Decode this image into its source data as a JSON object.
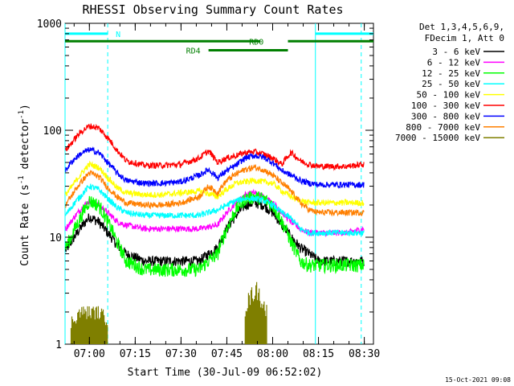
{
  "chart_data": {
    "type": "line",
    "title": "RHESSI Observing Summary Count Rates",
    "xlabel": "Start Time (30-Jul-09 06:52:02)",
    "ylabel_main": "Count Rate (s",
    "ylabel_sup1": "-1",
    "ylabel_mid": " detector",
    "ylabel_sup2": "-1",
    "ylabel_end": ")",
    "y_scale": "log",
    "ylim": [
      1,
      1000
    ],
    "xlim": [
      6.8672,
      8.55
    ],
    "x_ticks": [
      {
        "label": "07:00",
        "value": 7.0
      },
      {
        "label": "07:15",
        "value": 7.25
      },
      {
        "label": "07:30",
        "value": 7.5
      },
      {
        "label": "07:45",
        "value": 7.75
      },
      {
        "label": "08:00",
        "value": 8.0
      },
      {
        "label": "08:15",
        "value": 8.25
      },
      {
        "label": "08:30",
        "value": 8.5
      }
    ],
    "y_ticks": [
      {
        "label": "1",
        "value": 1
      },
      {
        "label": "10",
        "value": 10
      },
      {
        "label": "100",
        "value": 100
      },
      {
        "label": "1000",
        "value": 1000
      }
    ],
    "legend_header": [
      "Det 1,3,4,5,6,9,",
      "FDecim 1, Att 0"
    ],
    "legend_placement": "right",
    "timestamp": "15-Oct-2021 09:08",
    "flags": [
      {
        "label": "N",
        "color": "#00ffff",
        "spans": [
          [
            6.8672,
            7.1
          ],
          [
            8.2333,
            8.55
          ]
        ],
        "level": 800
      },
      {
        "label": "RD0",
        "color": "#007f00",
        "spans": [
          [
            6.8672,
            7.9333
          ],
          [
            8.0833,
            8.55
          ]
        ],
        "level": 680
      },
      {
        "label": "RD4",
        "color": "#007f00",
        "spans": [
          [
            7.65,
            8.0833
          ]
        ],
        "level": 560
      }
    ],
    "vlines": [
      {
        "x": 6.8672,
        "style": "solid"
      },
      {
        "x": 7.1,
        "style": "dashed"
      },
      {
        "x": 8.2333,
        "style": "solid"
      },
      {
        "x": 8.4833,
        "style": "dashed"
      }
    ],
    "series": [
      {
        "name": "3 - 6 keV",
        "color": "#000000",
        "x": [
          6.87,
          6.9,
          6.95,
          7.0,
          7.05,
          7.1,
          7.15,
          7.2,
          7.3,
          7.4,
          7.5,
          7.6,
          7.7,
          7.75,
          7.8,
          7.85,
          7.9,
          7.95,
          8.0,
          8.05,
          8.1,
          8.15,
          8.2,
          8.25,
          8.3,
          8.4,
          8.5
        ],
        "y": [
          7.5,
          9,
          12,
          15.5,
          14,
          11,
          8.5,
          7,
          6,
          6,
          6,
          6,
          8,
          12,
          16,
          20,
          21,
          20,
          17,
          13,
          10,
          8,
          7,
          6,
          6,
          6,
          6
        ]
      },
      {
        "name": "6 - 12 keV",
        "color": "#ff00ff",
        "x": [
          6.87,
          6.9,
          6.95,
          7.0,
          7.05,
          7.1,
          7.15,
          7.2,
          7.3,
          7.4,
          7.5,
          7.6,
          7.7,
          7.75,
          7.8,
          7.85,
          7.9,
          7.95,
          8.0,
          8.05,
          8.1,
          8.15,
          8.2,
          8.25,
          8.3,
          8.4,
          8.5
        ],
        "y": [
          12,
          14,
          18,
          22,
          20,
          17,
          14,
          13,
          12,
          12,
          12,
          12,
          13,
          17,
          21,
          25,
          26,
          24,
          21,
          17,
          14,
          12,
          11,
          11,
          11,
          11,
          12
        ]
      },
      {
        "name": "12 - 25 keV",
        "color": "#00ff00",
        "x": [
          6.87,
          6.9,
          6.95,
          7.0,
          7.05,
          7.1,
          7.15,
          7.2,
          7.3,
          7.4,
          7.5,
          7.6,
          7.7,
          7.75,
          7.8,
          7.85,
          7.9,
          7.95,
          8.0,
          8.05,
          8.1,
          8.15,
          8.2,
          8.25,
          8.3,
          8.4,
          8.5
        ],
        "y": [
          8,
          10,
          15,
          22,
          20,
          14,
          9,
          6,
          5,
          5,
          5,
          5,
          7,
          12,
          18,
          23,
          24,
          23,
          20,
          14,
          9,
          6,
          5.5,
          5.5,
          5.5,
          5.5,
          5.5
        ]
      },
      {
        "name": "25 - 50 keV",
        "color": "#00ffff",
        "x": [
          6.87,
          6.9,
          6.95,
          7.0,
          7.05,
          7.1,
          7.15,
          7.2,
          7.3,
          7.4,
          7.5,
          7.6,
          7.7,
          7.75,
          7.8,
          7.85,
          7.9,
          7.95,
          8.0,
          8.05,
          8.1,
          8.15,
          8.2,
          8.25,
          8.3,
          8.4,
          8.5
        ],
        "y": [
          16,
          19,
          24,
          30,
          28,
          23,
          19,
          17,
          16,
          16,
          16,
          16,
          18,
          20,
          22,
          23,
          23,
          22,
          20,
          17,
          15,
          12,
          11,
          11,
          11,
          11,
          11
        ]
      },
      {
        "name": "50 - 100 keV",
        "color": "#ffff00",
        "x": [
          6.87,
          6.9,
          6.95,
          7.0,
          7.05,
          7.1,
          7.15,
          7.2,
          7.3,
          7.4,
          7.5,
          7.6,
          7.7,
          7.75,
          7.8,
          7.85,
          7.9,
          7.95,
          8.0,
          8.05,
          8.1,
          8.15,
          8.2,
          8.25,
          8.3,
          8.4,
          8.5
        ],
        "y": [
          25,
          29,
          38,
          48,
          45,
          36,
          29,
          26,
          25,
          25,
          26,
          27,
          24,
          28,
          32,
          33,
          34,
          33,
          32,
          27,
          24,
          22,
          21,
          21,
          21,
          21,
          21
        ]
      },
      {
        "name": "100 - 300 keV",
        "color": "#ff0000",
        "x": [
          6.87,
          6.9,
          6.95,
          7.0,
          7.05,
          7.1,
          7.15,
          7.2,
          7.3,
          7.4,
          7.5,
          7.6,
          7.65,
          7.7,
          7.75,
          7.8,
          7.85,
          7.9,
          7.95,
          8.0,
          8.05,
          8.1,
          8.15,
          8.2,
          8.25,
          8.3,
          8.4,
          8.5
        ],
        "y": [
          65,
          75,
          95,
          110,
          105,
          85,
          65,
          52,
          47,
          47,
          48,
          55,
          64,
          50,
          55,
          58,
          62,
          63,
          60,
          55,
          48,
          62,
          52,
          48,
          46,
          46,
          46,
          48
        ]
      },
      {
        "name": "300 - 800 keV",
        "color": "#0000ff",
        "x": [
          6.87,
          6.9,
          6.95,
          7.0,
          7.05,
          7.1,
          7.15,
          7.2,
          7.3,
          7.4,
          7.5,
          7.6,
          7.65,
          7.7,
          7.75,
          7.8,
          7.85,
          7.9,
          7.95,
          8.0,
          8.05,
          8.1,
          8.15,
          8.2,
          8.25,
          8.3,
          8.4,
          8.5
        ],
        "y": [
          42,
          50,
          60,
          66,
          62,
          50,
          40,
          34,
          32,
          32,
          33,
          38,
          43,
          36,
          42,
          47,
          55,
          58,
          56,
          50,
          42,
          38,
          34,
          32,
          31,
          31,
          31,
          31
        ]
      },
      {
        "name": "800 - 7000 keV",
        "color": "#ff7f00",
        "x": [
          6.87,
          6.9,
          6.95,
          7.0,
          7.05,
          7.1,
          7.15,
          7.2,
          7.3,
          7.4,
          7.5,
          7.6,
          7.65,
          7.7,
          7.75,
          7.8,
          7.85,
          7.9,
          7.95,
          8.0,
          8.05,
          8.1,
          8.15,
          8.2,
          8.25,
          8.3,
          8.4,
          8.5
        ],
        "y": [
          20,
          24,
          32,
          40,
          37,
          29,
          24,
          21,
          20,
          20,
          21,
          24,
          30,
          26,
          34,
          39,
          43,
          45,
          43,
          38,
          32,
          27,
          21,
          18,
          17,
          17,
          17,
          17
        ]
      },
      {
        "name": "7000 - 15000 keV",
        "color": "#7f7f00",
        "x": [
          6.9,
          6.95,
          7.0,
          7.05,
          7.1,
          7.85,
          7.88,
          7.91,
          7.94,
          7.97
        ],
        "y": [
          1.6,
          2,
          2,
          2,
          1.7,
          2.2,
          2.8,
          3.3,
          2.6,
          2
        ]
      }
    ]
  }
}
